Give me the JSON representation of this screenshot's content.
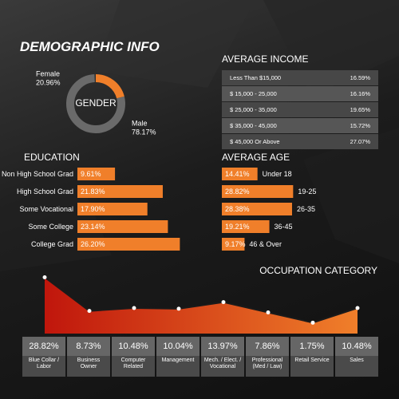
{
  "title": "DEMOGRAPHIC INFO",
  "chart_data": [
    {
      "type": "donut",
      "title": "GENDER",
      "categories": [
        "Female",
        "Male"
      ],
      "values": [
        20.96,
        78.17
      ],
      "value_labels": [
        "20.96%",
        "78.17%"
      ],
      "colors": [
        "#f07f2a",
        "#6a6a6a"
      ]
    },
    {
      "type": "table",
      "title": "AVERAGE INCOME",
      "categories": [
        "Less Than $15,000",
        "$ 15,000 - 25,000",
        "$ 25,000 - 35,000",
        "$ 35,000 - 45,000",
        "$ 45,000 Or Above"
      ],
      "values": [
        16.59,
        16.16,
        19.65,
        15.72,
        27.07
      ],
      "value_labels": [
        "16.59%",
        "16.16%",
        "19.65%",
        "15.72%",
        "27.07%"
      ]
    },
    {
      "type": "barh",
      "title": "EDUCATION",
      "categories": [
        "Non High School Grad",
        "High School Grad",
        "Some Vocational",
        "Some College",
        "College Grad"
      ],
      "values": [
        9.61,
        21.83,
        17.9,
        23.14,
        26.2
      ],
      "value_labels": [
        "9.61%",
        "21.83%",
        "17.90%",
        "23.14%",
        "26.20%"
      ],
      "color": "#f07f2a"
    },
    {
      "type": "barh",
      "title": "AVERAGE AGE",
      "categories": [
        "Under 18",
        "19-25",
        "26-35",
        "36-45",
        "46 & Over"
      ],
      "values": [
        14.41,
        28.82,
        28.38,
        19.21,
        9.17
      ],
      "value_labels": [
        "14.41%",
        "28.82%",
        "28.38%",
        "19.21%",
        "9.17%"
      ],
      "color": "#f07f2a"
    },
    {
      "type": "area",
      "title": "OCCUPATION CATEGORY",
      "categories": [
        "Blue Collar / Labor",
        "Business Owner",
        "Computer Related",
        "Management",
        "Mech. / Elect. / Vocational",
        "Professional (Med / Law)",
        "Retail Service",
        "Sales"
      ],
      "values": [
        28.82,
        8.73,
        10.48,
        10.04,
        13.97,
        7.86,
        1.75,
        10.48
      ],
      "value_labels": [
        "28.82%",
        "8.73%",
        "10.48%",
        "10.04%",
        "13.97%",
        "7.86%",
        "1.75%",
        "10.48%"
      ],
      "colors": [
        "#c0160c",
        "#f07f2a"
      ]
    }
  ]
}
